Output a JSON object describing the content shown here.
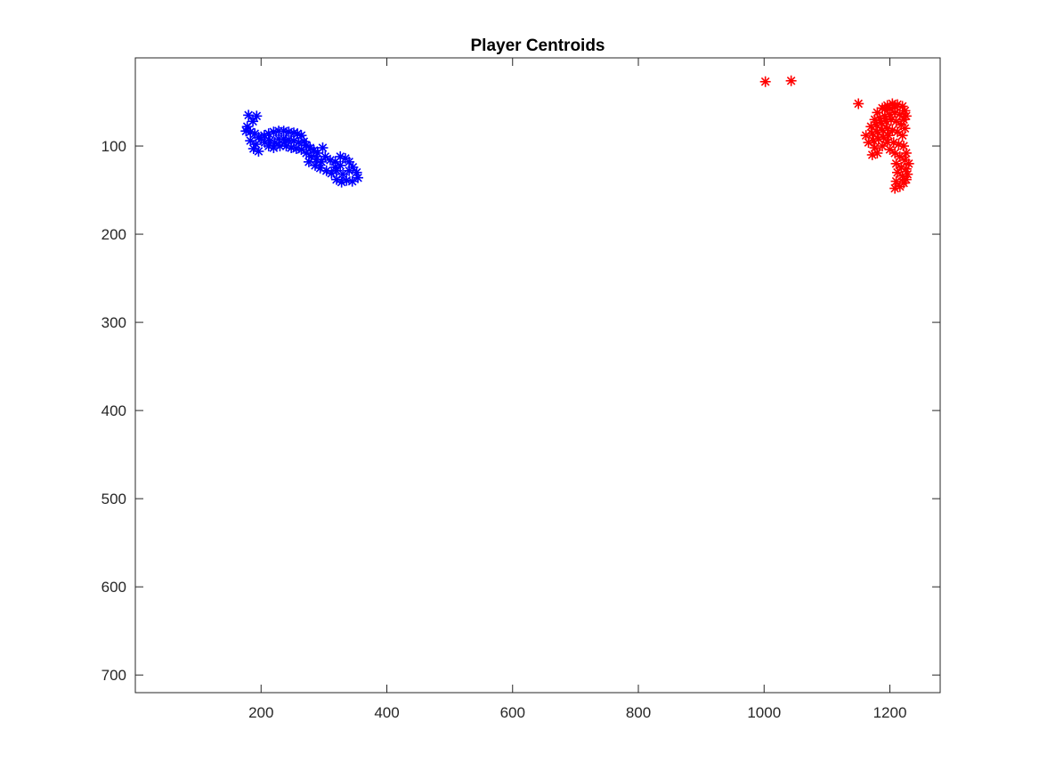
{
  "chart_data": {
    "type": "scatter",
    "title": "Player Centroids",
    "xlabel": "",
    "ylabel": "",
    "xlim": [
      0,
      1280
    ],
    "ylim": [
      0,
      720
    ],
    "y_reversed": true,
    "grid": false,
    "marker": "asterisk",
    "xticks": [
      200,
      400,
      600,
      800,
      1000,
      1200
    ],
    "yticks": [
      100,
      200,
      300,
      400,
      500,
      600,
      700
    ],
    "series": [
      {
        "color": "#0000ff",
        "points": [
          [
            180,
            65
          ],
          [
            193,
            66
          ],
          [
            187,
            72
          ],
          [
            178,
            78
          ],
          [
            176,
            83
          ],
          [
            183,
            84
          ],
          [
            190,
            86
          ],
          [
            196,
            90
          ],
          [
            183,
            94
          ],
          [
            192,
            98
          ],
          [
            188,
            103
          ],
          [
            196,
            106
          ],
          [
            200,
            92
          ],
          [
            205,
            88
          ],
          [
            212,
            86
          ],
          [
            220,
            84
          ],
          [
            228,
            83
          ],
          [
            236,
            83
          ],
          [
            244,
            84
          ],
          [
            252,
            85
          ],
          [
            258,
            86
          ],
          [
            264,
            88
          ],
          [
            228,
            92
          ],
          [
            236,
            92
          ],
          [
            244,
            93
          ],
          [
            252,
            94
          ],
          [
            260,
            96
          ],
          [
            268,
            95
          ],
          [
            240,
            100
          ],
          [
            248,
            102
          ],
          [
            256,
            103
          ],
          [
            264,
            104
          ],
          [
            272,
            99
          ],
          [
            278,
            102
          ],
          [
            284,
            105
          ],
          [
            290,
            108
          ],
          [
            272,
            108
          ],
          [
            280,
            112
          ],
          [
            288,
            115
          ],
          [
            296,
            118
          ],
          [
            276,
            118
          ],
          [
            286,
            122
          ],
          [
            294,
            125
          ],
          [
            302,
            112
          ],
          [
            310,
            116
          ],
          [
            318,
            118
          ],
          [
            304,
            128
          ],
          [
            312,
            131
          ],
          [
            320,
            128
          ],
          [
            326,
            112
          ],
          [
            334,
            114
          ],
          [
            340,
            118
          ],
          [
            346,
            124
          ],
          [
            352,
            130
          ],
          [
            354,
            136
          ],
          [
            345,
            140
          ],
          [
            336,
            139
          ],
          [
            328,
            141
          ],
          [
            320,
            138
          ],
          [
            330,
            132
          ],
          [
            340,
            128
          ],
          [
            318,
            124
          ],
          [
            326,
            122
          ],
          [
            298,
            102
          ],
          [
            206,
            96
          ],
          [
            214,
            94
          ],
          [
            222,
            96
          ],
          [
            230,
            100
          ],
          [
            238,
            96
          ],
          [
            212,
            100
          ],
          [
            220,
            102
          ]
        ]
      },
      {
        "color": "#ff0000",
        "points": [
          [
            1002,
            27
          ],
          [
            1043,
            26
          ],
          [
            1150,
            52
          ],
          [
            1180,
            62
          ],
          [
            1188,
            57
          ],
          [
            1196,
            54
          ],
          [
            1204,
            52
          ],
          [
            1212,
            53
          ],
          [
            1220,
            55
          ],
          [
            1224,
            60
          ],
          [
            1226,
            66
          ],
          [
            1176,
            70
          ],
          [
            1184,
            68
          ],
          [
            1192,
            66
          ],
          [
            1200,
            64
          ],
          [
            1208,
            62
          ],
          [
            1216,
            64
          ],
          [
            1222,
            70
          ],
          [
            1170,
            78
          ],
          [
            1178,
            76
          ],
          [
            1186,
            74
          ],
          [
            1194,
            72
          ],
          [
            1202,
            70
          ],
          [
            1210,
            72
          ],
          [
            1218,
            76
          ],
          [
            1224,
            80
          ],
          [
            1172,
            86
          ],
          [
            1180,
            84
          ],
          [
            1188,
            82
          ],
          [
            1196,
            80
          ],
          [
            1204,
            82
          ],
          [
            1212,
            84
          ],
          [
            1220,
            88
          ],
          [
            1174,
            94
          ],
          [
            1182,
            92
          ],
          [
            1190,
            90
          ],
          [
            1198,
            88
          ],
          [
            1176,
            102
          ],
          [
            1172,
            110
          ],
          [
            1180,
            108
          ],
          [
            1188,
            100
          ],
          [
            1196,
            96
          ],
          [
            1200,
            104
          ],
          [
            1206,
            96
          ],
          [
            1214,
            98
          ],
          [
            1222,
            100
          ],
          [
            1226,
            108
          ],
          [
            1208,
            108
          ],
          [
            1216,
            112
          ],
          [
            1224,
            116
          ],
          [
            1210,
            120
          ],
          [
            1218,
            124
          ],
          [
            1226,
            126
          ],
          [
            1212,
            130
          ],
          [
            1220,
            134
          ],
          [
            1226,
            138
          ],
          [
            1210,
            140
          ],
          [
            1216,
            146
          ],
          [
            1222,
            142
          ],
          [
            1208,
            148
          ],
          [
            1228,
            132
          ],
          [
            1230,
            120
          ],
          [
            1192,
            58
          ],
          [
            1200,
            58
          ],
          [
            1208,
            56
          ],
          [
            1166,
            96
          ],
          [
            1162,
            88
          ]
        ]
      }
    ]
  }
}
